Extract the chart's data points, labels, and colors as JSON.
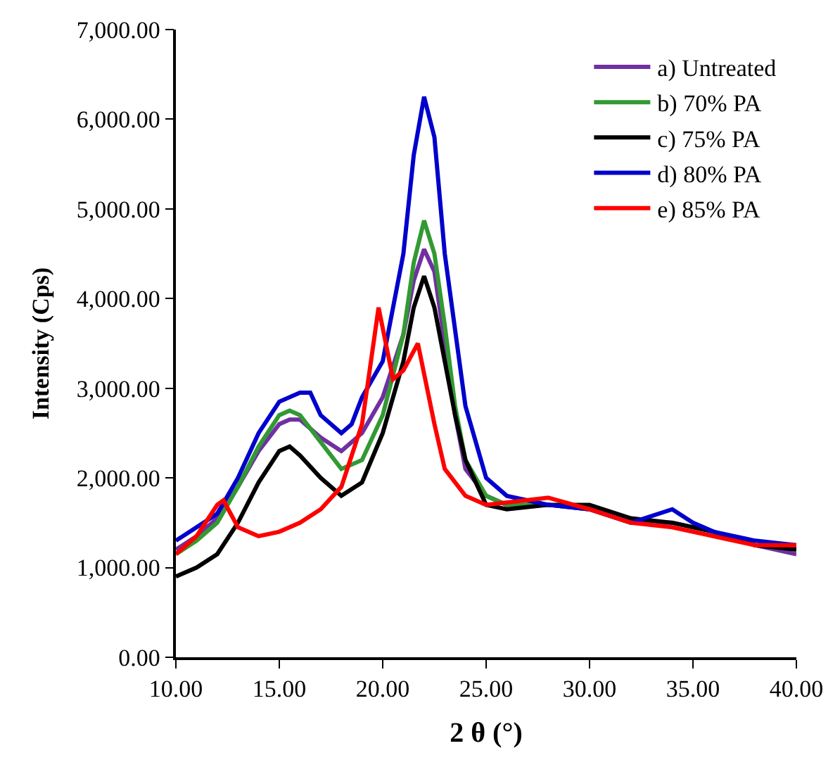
{
  "chart_data": {
    "type": "line",
    "xlabel": "2 θ (°)",
    "ylabel": "Intensity (Cps)",
    "xlim": [
      10,
      40
    ],
    "ylim": [
      0,
      7000
    ],
    "xticks": [
      {
        "value": 10,
        "label": "10.00"
      },
      {
        "value": 15,
        "label": "15.00"
      },
      {
        "value": 20,
        "label": "20.00"
      },
      {
        "value": 25,
        "label": "25.00"
      },
      {
        "value": 30,
        "label": "30.00"
      },
      {
        "value": 35,
        "label": "35.00"
      },
      {
        "value": 40,
        "label": "40.00"
      }
    ],
    "yticks": [
      {
        "value": 0,
        "label": "0.00"
      },
      {
        "value": 1000,
        "label": "1,000.00"
      },
      {
        "value": 2000,
        "label": "2,000.00"
      },
      {
        "value": 3000,
        "label": "3,000.00"
      },
      {
        "value": 4000,
        "label": "4,000.00"
      },
      {
        "value": 5000,
        "label": "5,000.00"
      },
      {
        "value": 6000,
        "label": "6,000.00"
      },
      {
        "value": 7000,
        "label": "7,000.00"
      }
    ],
    "grid": false,
    "legend": "top right",
    "marker": "none",
    "line_style": "solid",
    "series": [
      {
        "name": "a) Untreated",
        "color": "#7030a0",
        "x": [
          10,
          11,
          12,
          13,
          14,
          15,
          15.5,
          16,
          17,
          18,
          19,
          20,
          21,
          21.5,
          22,
          22.5,
          23,
          23.5,
          24,
          25,
          26,
          28,
          30,
          32,
          34,
          36,
          38,
          40
        ],
        "values": [
          1200,
          1350,
          1550,
          1900,
          2300,
          2600,
          2650,
          2650,
          2450,
          2300,
          2500,
          2900,
          3600,
          4200,
          4550,
          4300,
          3500,
          2700,
          2100,
          1800,
          1700,
          1700,
          1650,
          1500,
          1500,
          1400,
          1250,
          1150
        ]
      },
      {
        "name": "b) 70% PA",
        "color": "#339933",
        "x": [
          10,
          11,
          12,
          13,
          14,
          15,
          15.5,
          16,
          17,
          18,
          19,
          20,
          21,
          21.5,
          22,
          22.5,
          23,
          23.5,
          24,
          25,
          26,
          28,
          30
        ],
        "values": [
          1150,
          1300,
          1500,
          1900,
          2350,
          2700,
          2750,
          2700,
          2400,
          2100,
          2200,
          2700,
          3600,
          4400,
          4870,
          4500,
          3700,
          2800,
          2200,
          1800,
          1700,
          1700,
          1650
        ]
      },
      {
        "name": "c) 75% PA",
        "color": "#000000",
        "x": [
          10,
          11,
          12,
          13,
          14,
          15,
          15.5,
          16,
          17,
          18,
          19,
          20,
          21,
          21.5,
          22,
          22.5,
          23,
          23.5,
          24,
          25,
          26,
          28,
          30,
          32,
          34,
          36,
          38,
          40
        ],
        "values": [
          900,
          1000,
          1150,
          1500,
          1950,
          2300,
          2350,
          2250,
          2000,
          1800,
          1950,
          2500,
          3300,
          3900,
          4250,
          3900,
          3300,
          2700,
          2200,
          1700,
          1650,
          1700,
          1700,
          1550,
          1500,
          1400,
          1250,
          1200
        ]
      },
      {
        "name": "d) 80% PA",
        "color": "#0000cc",
        "x": [
          10,
          11,
          12,
          13,
          14,
          15,
          16,
          16.5,
          17,
          18,
          18.5,
          19,
          20,
          21,
          21.5,
          22,
          22.5,
          23,
          24,
          25,
          26,
          28,
          30,
          32,
          34,
          35,
          36,
          38,
          40
        ],
        "values": [
          1300,
          1450,
          1600,
          2000,
          2500,
          2850,
          2950,
          2950,
          2700,
          2500,
          2600,
          2900,
          3300,
          4500,
          5600,
          6250,
          5800,
          4500,
          2800,
          2000,
          1800,
          1700,
          1650,
          1500,
          1650,
          1500,
          1400,
          1300,
          1250
        ]
      },
      {
        "name": "e) 85% PA",
        "color": "#ff0000",
        "x": [
          10,
          11,
          12,
          12.3,
          13,
          14,
          15,
          16,
          17,
          18,
          19,
          19.8,
          20.5,
          21,
          21.7,
          22.5,
          23,
          24,
          25,
          28,
          30,
          32,
          34,
          36,
          38,
          40
        ],
        "values": [
          1150,
          1350,
          1700,
          1750,
          1450,
          1350,
          1400,
          1500,
          1650,
          1900,
          2600,
          3900,
          3100,
          3200,
          3500,
          2600,
          2100,
          1800,
          1700,
          1780,
          1650,
          1500,
          1450,
          1350,
          1250,
          1250
        ]
      }
    ]
  }
}
